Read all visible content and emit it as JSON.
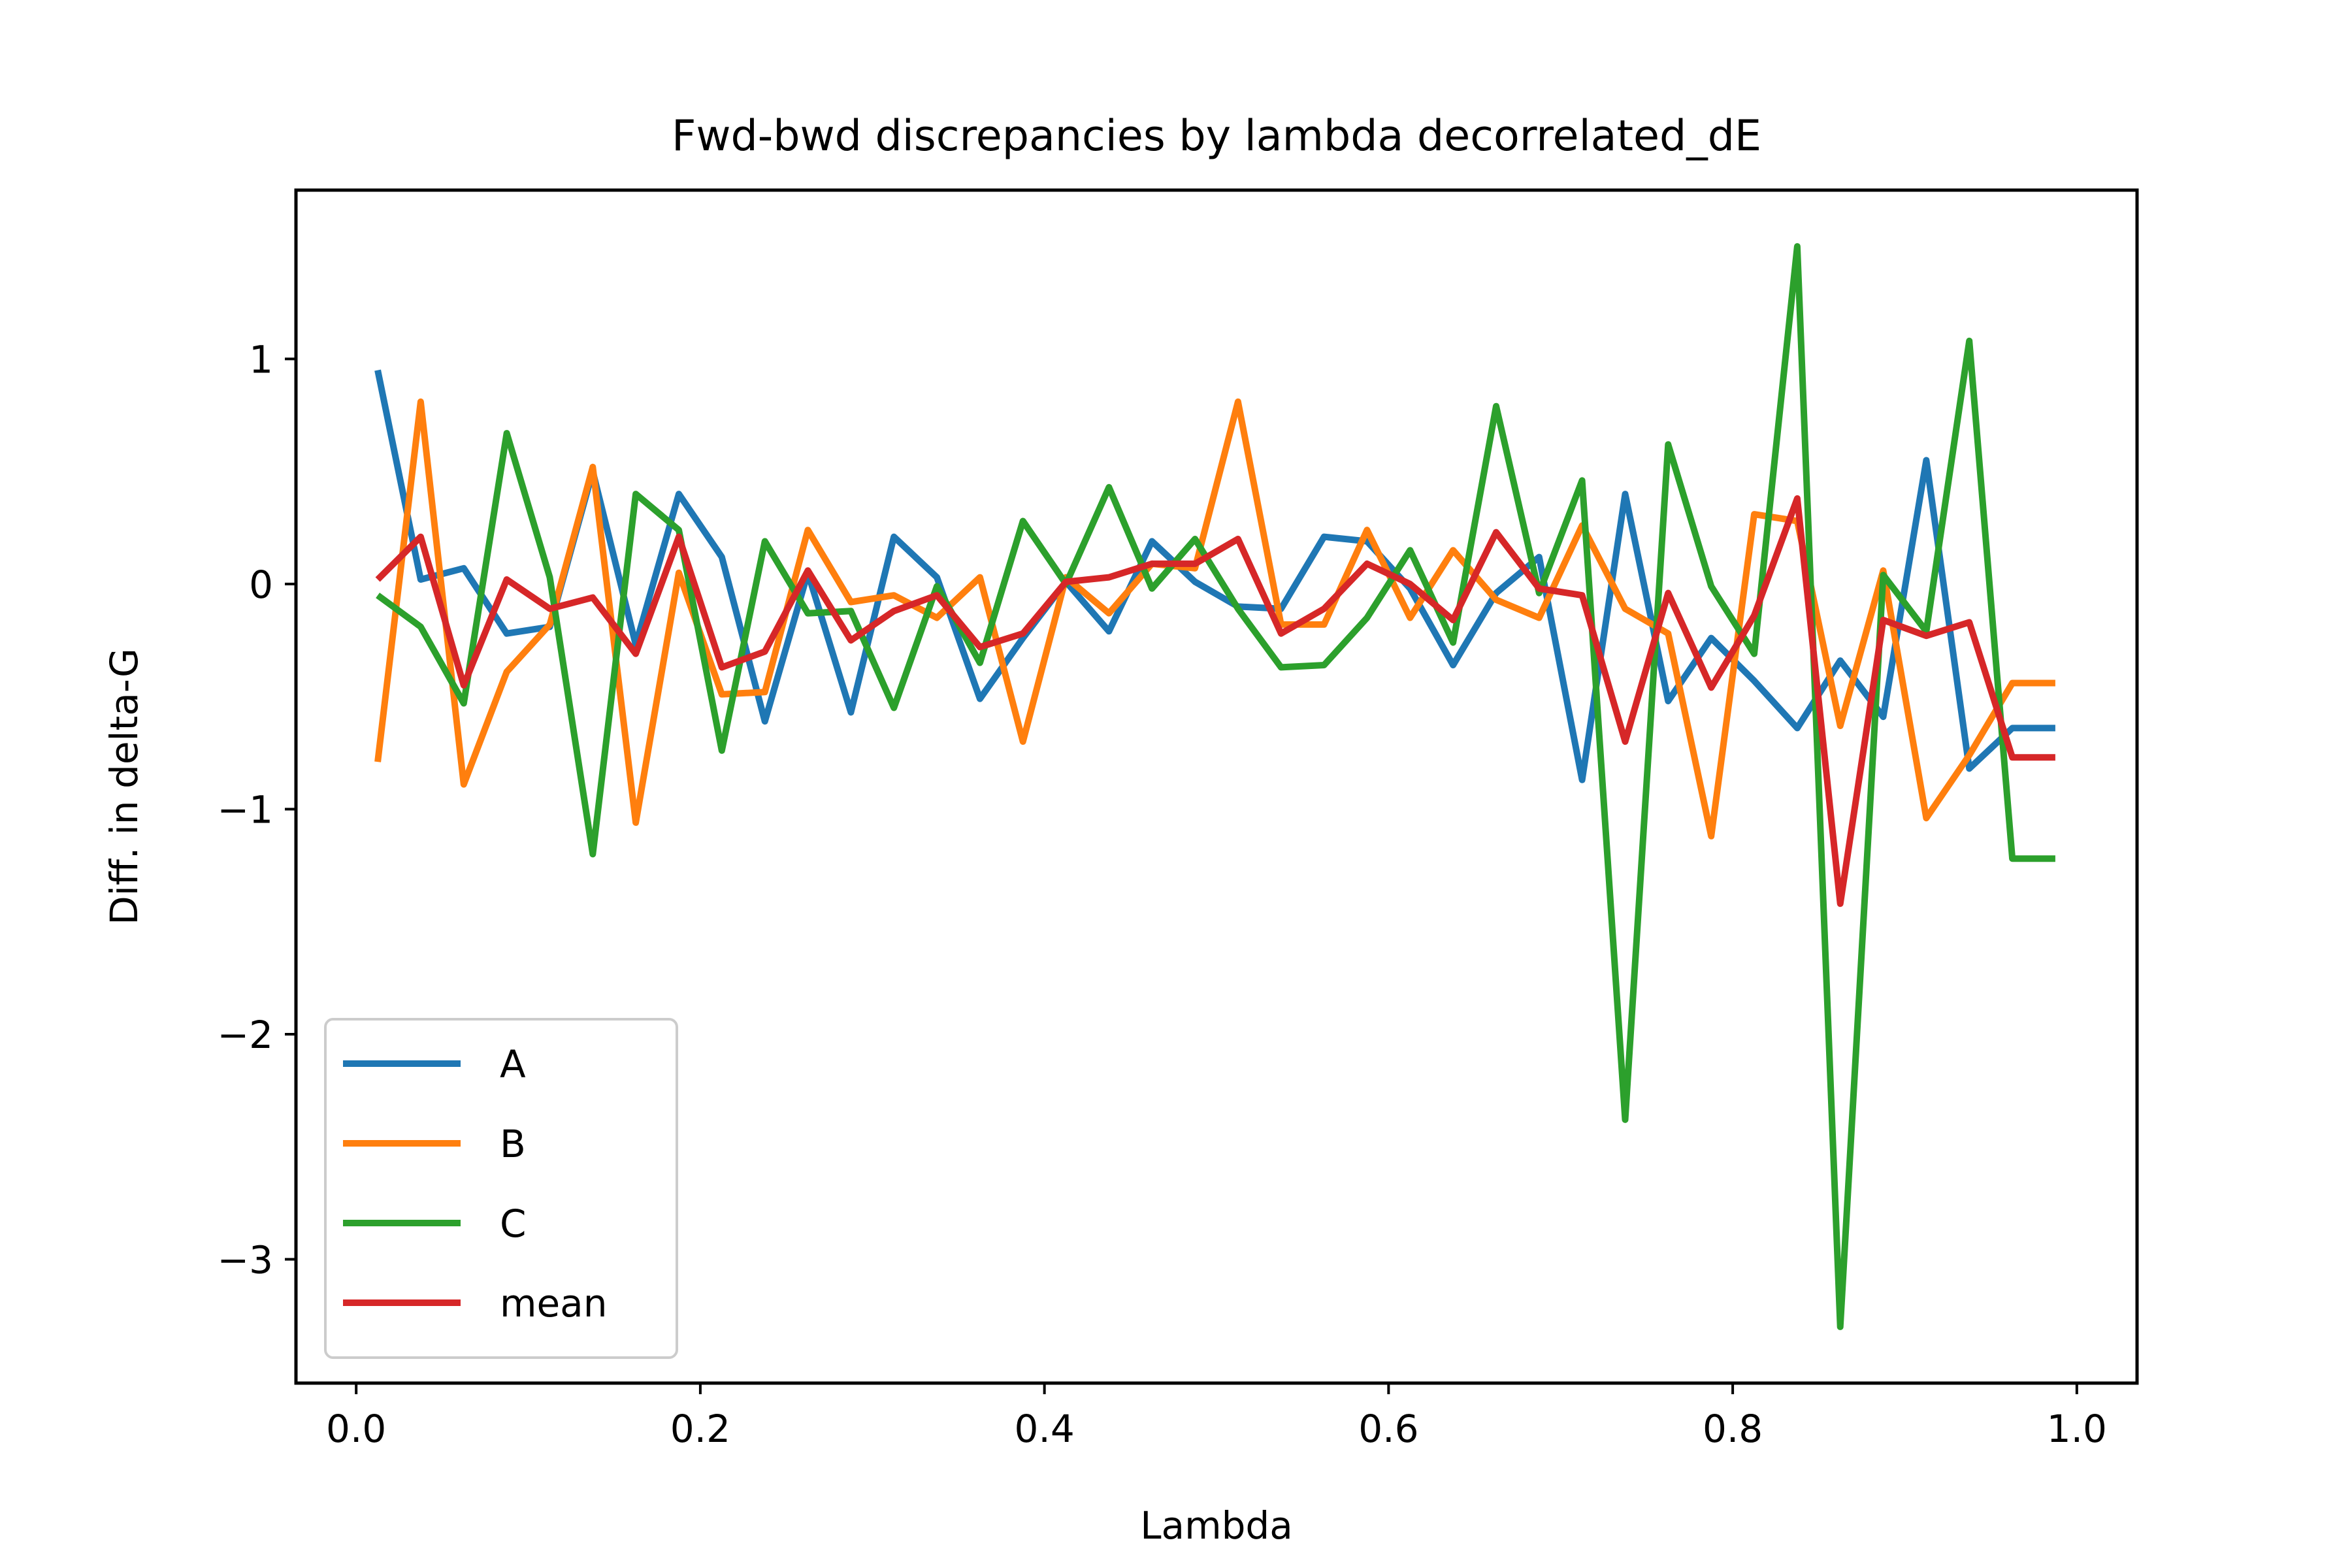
{
  "chart_data": {
    "type": "line",
    "title": "Fwd-bwd discrepancies by lambda decorrelated_dE",
    "xlabel": "Lambda",
    "ylabel": "Diff. in delta-G",
    "xlim": [
      -0.035,
      1.035
    ],
    "ylim": [
      -3.55,
      1.75
    ],
    "xticks": [
      0.0,
      0.2,
      0.4,
      0.6,
      0.8,
      1.0
    ],
    "xtick_labels": [
      "0.0",
      "0.2",
      "0.4",
      "0.6",
      "0.8",
      "1.0"
    ],
    "yticks": [
      1,
      0,
      -1,
      -2,
      -3
    ],
    "ytick_labels": [
      "1",
      "0",
      "−1",
      "−2",
      "−3"
    ],
    "grid": false,
    "legend_position": "lower-left",
    "x": [
      0.0125,
      0.0375,
      0.0625,
      0.0875,
      0.1125,
      0.1375,
      0.1625,
      0.1875,
      0.2125,
      0.2375,
      0.2625,
      0.2875,
      0.3125,
      0.3375,
      0.3625,
      0.3875,
      0.4125,
      0.4375,
      0.4625,
      0.4875,
      0.5125,
      0.5375,
      0.5625,
      0.5875,
      0.6125,
      0.6375,
      0.6625,
      0.6875,
      0.7125,
      0.7375,
      0.7625,
      0.7875,
      0.8125,
      0.8375,
      0.8625,
      0.8875,
      0.9125,
      0.9375,
      0.9625,
      0.9875
    ],
    "series": [
      {
        "name": "A",
        "color": "#1f77b4",
        "values": [
          0.95,
          0.02,
          0.07,
          -0.22,
          -0.19,
          0.5,
          -0.27,
          0.4,
          0.12,
          -0.61,
          0.05,
          -0.57,
          0.21,
          0.03,
          -0.51,
          -0.24,
          0.01,
          -0.21,
          0.19,
          0.01,
          -0.1,
          -0.11,
          0.21,
          0.19,
          -0.02,
          -0.36,
          -0.04,
          0.12,
          -0.87,
          0.4,
          -0.52,
          -0.24,
          -0.43,
          -0.64,
          -0.34,
          -0.59,
          0.55,
          -0.82,
          -0.64,
          -0.64
        ]
      },
      {
        "name": "B",
        "color": "#ff7f0e",
        "values": [
          -0.79,
          0.81,
          -0.89,
          -0.39,
          -0.18,
          0.52,
          -1.06,
          0.05,
          -0.49,
          -0.48,
          0.24,
          -0.08,
          -0.05,
          -0.15,
          0.03,
          -0.7,
          0.03,
          -0.13,
          0.09,
          0.07,
          0.81,
          -0.18,
          -0.18,
          0.24,
          -0.15,
          0.15,
          -0.07,
          -0.15,
          0.26,
          -0.11,
          -0.22,
          -1.12,
          0.31,
          0.28,
          -0.63,
          0.06,
          -1.04,
          -0.76,
          -0.44,
          -0.44
        ]
      },
      {
        "name": "C",
        "color": "#2ca02c",
        "values": [
          -0.05,
          -0.19,
          -0.53,
          0.67,
          0.03,
          -1.2,
          0.4,
          0.24,
          -0.74,
          0.19,
          -0.13,
          -0.12,
          -0.55,
          -0.01,
          -0.35,
          0.28,
          0.0,
          0.43,
          -0.02,
          0.2,
          -0.11,
          -0.37,
          -0.36,
          -0.15,
          0.15,
          -0.26,
          0.79,
          -0.04,
          0.46,
          -2.38,
          0.62,
          -0.01,
          -0.31,
          1.5,
          -3.3,
          0.04,
          -0.21,
          1.08,
          -1.22,
          -1.22
        ]
      },
      {
        "name": "mean",
        "color": "#d62728",
        "values": [
          0.02,
          0.21,
          -0.45,
          0.02,
          -0.11,
          -0.06,
          -0.31,
          0.21,
          -0.37,
          -0.3,
          0.06,
          -0.25,
          -0.12,
          -0.05,
          -0.28,
          -0.22,
          0.01,
          0.03,
          0.09,
          0.09,
          0.2,
          -0.22,
          -0.11,
          0.09,
          0.0,
          -0.16,
          0.23,
          -0.02,
          -0.05,
          -0.7,
          -0.04,
          -0.46,
          -0.14,
          0.38,
          -1.42,
          -0.16,
          -0.23,
          -0.17,
          -0.77,
          -0.77
        ]
      }
    ]
  }
}
